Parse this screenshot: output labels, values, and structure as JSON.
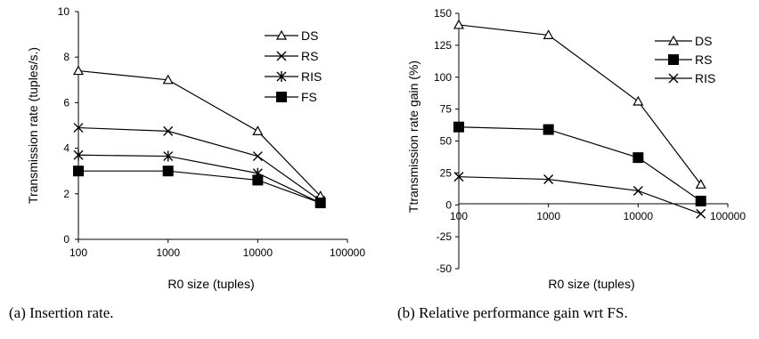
{
  "chart_data": [
    {
      "type": "line",
      "caption": "(a) Insertion rate.",
      "xlabel": "R0 size (tuples)",
      "ylabel": "Transmission rate (tuples/s.)",
      "x_scale": "log",
      "x_ticks": [
        "100",
        "1000",
        "10000",
        "100000"
      ],
      "y_ticks": [
        "0",
        "2",
        "4",
        "6",
        "8",
        "10"
      ],
      "xlim": [
        100,
        100000
      ],
      "ylim": [
        0,
        10
      ],
      "legend_position": "top-right",
      "x": [
        100,
        1000,
        10000,
        50000
      ],
      "series": [
        {
          "name": "DS",
          "marker": "triangle",
          "values": [
            7.4,
            7.0,
            4.75,
            1.9
          ]
        },
        {
          "name": "RS",
          "marker": "x",
          "values": [
            4.9,
            4.75,
            3.65,
            1.7
          ]
        },
        {
          "name": "RIS",
          "marker": "star",
          "values": [
            3.7,
            3.65,
            2.9,
            1.6
          ]
        },
        {
          "name": "FS",
          "marker": "square",
          "values": [
            3.0,
            3.0,
            2.6,
            1.6
          ]
        }
      ]
    },
    {
      "type": "line",
      "caption": "(b) Relative performance gain wrt FS.",
      "xlabel": "R0 size (tuples)",
      "ylabel": "Ttransmission rate gain (%)",
      "x_scale": "log",
      "x_ticks": [
        "100",
        "1000",
        "10000",
        "100000"
      ],
      "y_ticks": [
        "-50",
        "-25",
        "0",
        "25",
        "50",
        "75",
        "100",
        "125",
        "150"
      ],
      "xlim": [
        100,
        100000
      ],
      "ylim": [
        -50,
        150
      ],
      "legend_position": "top-right",
      "x": [
        100,
        1000,
        10000,
        50000
      ],
      "series": [
        {
          "name": "DS",
          "marker": "triangle",
          "values": [
            141,
            133,
            81,
            16
          ]
        },
        {
          "name": "RS",
          "marker": "square",
          "values": [
            61,
            59,
            37,
            3
          ]
        },
        {
          "name": "RIS",
          "marker": "x",
          "values": [
            22,
            20,
            11,
            -7
          ]
        }
      ]
    }
  ]
}
